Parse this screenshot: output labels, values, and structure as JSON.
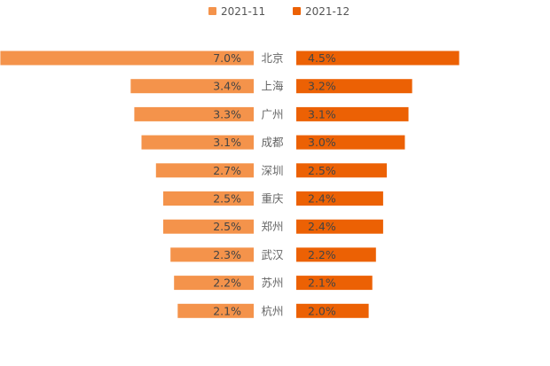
{
  "chart_data": {
    "type": "bar",
    "orientation": "horizontal-butterfly",
    "categories": [
      "北京",
      "上海",
      "广州",
      "成都",
      "深圳",
      "重庆",
      "郑州",
      "武汉",
      "苏州",
      "杭州"
    ],
    "series": [
      {
        "name": "2021-11",
        "color": "#f4934b",
        "side": "left",
        "values": [
          7.0,
          3.4,
          3.3,
          3.1,
          2.7,
          2.5,
          2.5,
          2.3,
          2.2,
          2.1
        ],
        "labels": [
          "7.0%",
          "3.4%",
          "3.3%",
          "3.1%",
          "2.7%",
          "2.5%",
          "2.5%",
          "2.3%",
          "2.2%",
          "2.1%"
        ]
      },
      {
        "name": "2021-12",
        "color": "#ec6104",
        "side": "right",
        "values": [
          4.5,
          3.2,
          3.1,
          3.0,
          2.5,
          2.4,
          2.4,
          2.2,
          2.1,
          2.0
        ],
        "labels": [
          "4.5%",
          "3.2%",
          "3.1%",
          "3.0%",
          "2.5%",
          "2.4%",
          "2.4%",
          "2.2%",
          "2.1%",
          "2.0%"
        ]
      }
    ],
    "unit": "%",
    "title": "",
    "legend_position": "top-center"
  }
}
